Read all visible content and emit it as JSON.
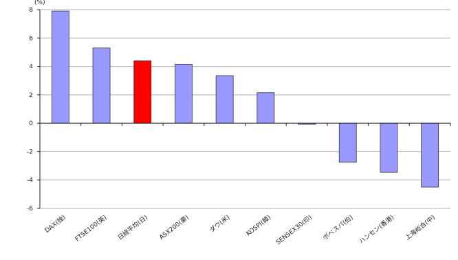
{
  "chart_data": {
    "type": "bar",
    "y_unit_label": "(%)",
    "categories": [
      "DAX(独)",
      "FTSE100(英)",
      "日経平均(日)",
      "ASX200(豪)",
      "ダウ(米)",
      "KOSPI(韓)",
      "SENSEX30(印)",
      "ボベスパ(伯)",
      "ハンセン(香港)",
      "上海総合(中)"
    ],
    "values": [
      7.9,
      5.3,
      4.4,
      4.15,
      3.35,
      2.15,
      -0.08,
      -2.75,
      -3.45,
      -4.5
    ],
    "highlight_index": 2,
    "ylim": [
      -6,
      8
    ],
    "yticks": [
      -6,
      -4,
      -2,
      0,
      2,
      4,
      6,
      8
    ],
    "grid": true,
    "legend": "none",
    "colors": {
      "bar": "#9999ff",
      "highlight": "#ff0000",
      "bar_stroke": "#333333",
      "grid": "#b0b0b0",
      "axis": "#222222"
    }
  }
}
